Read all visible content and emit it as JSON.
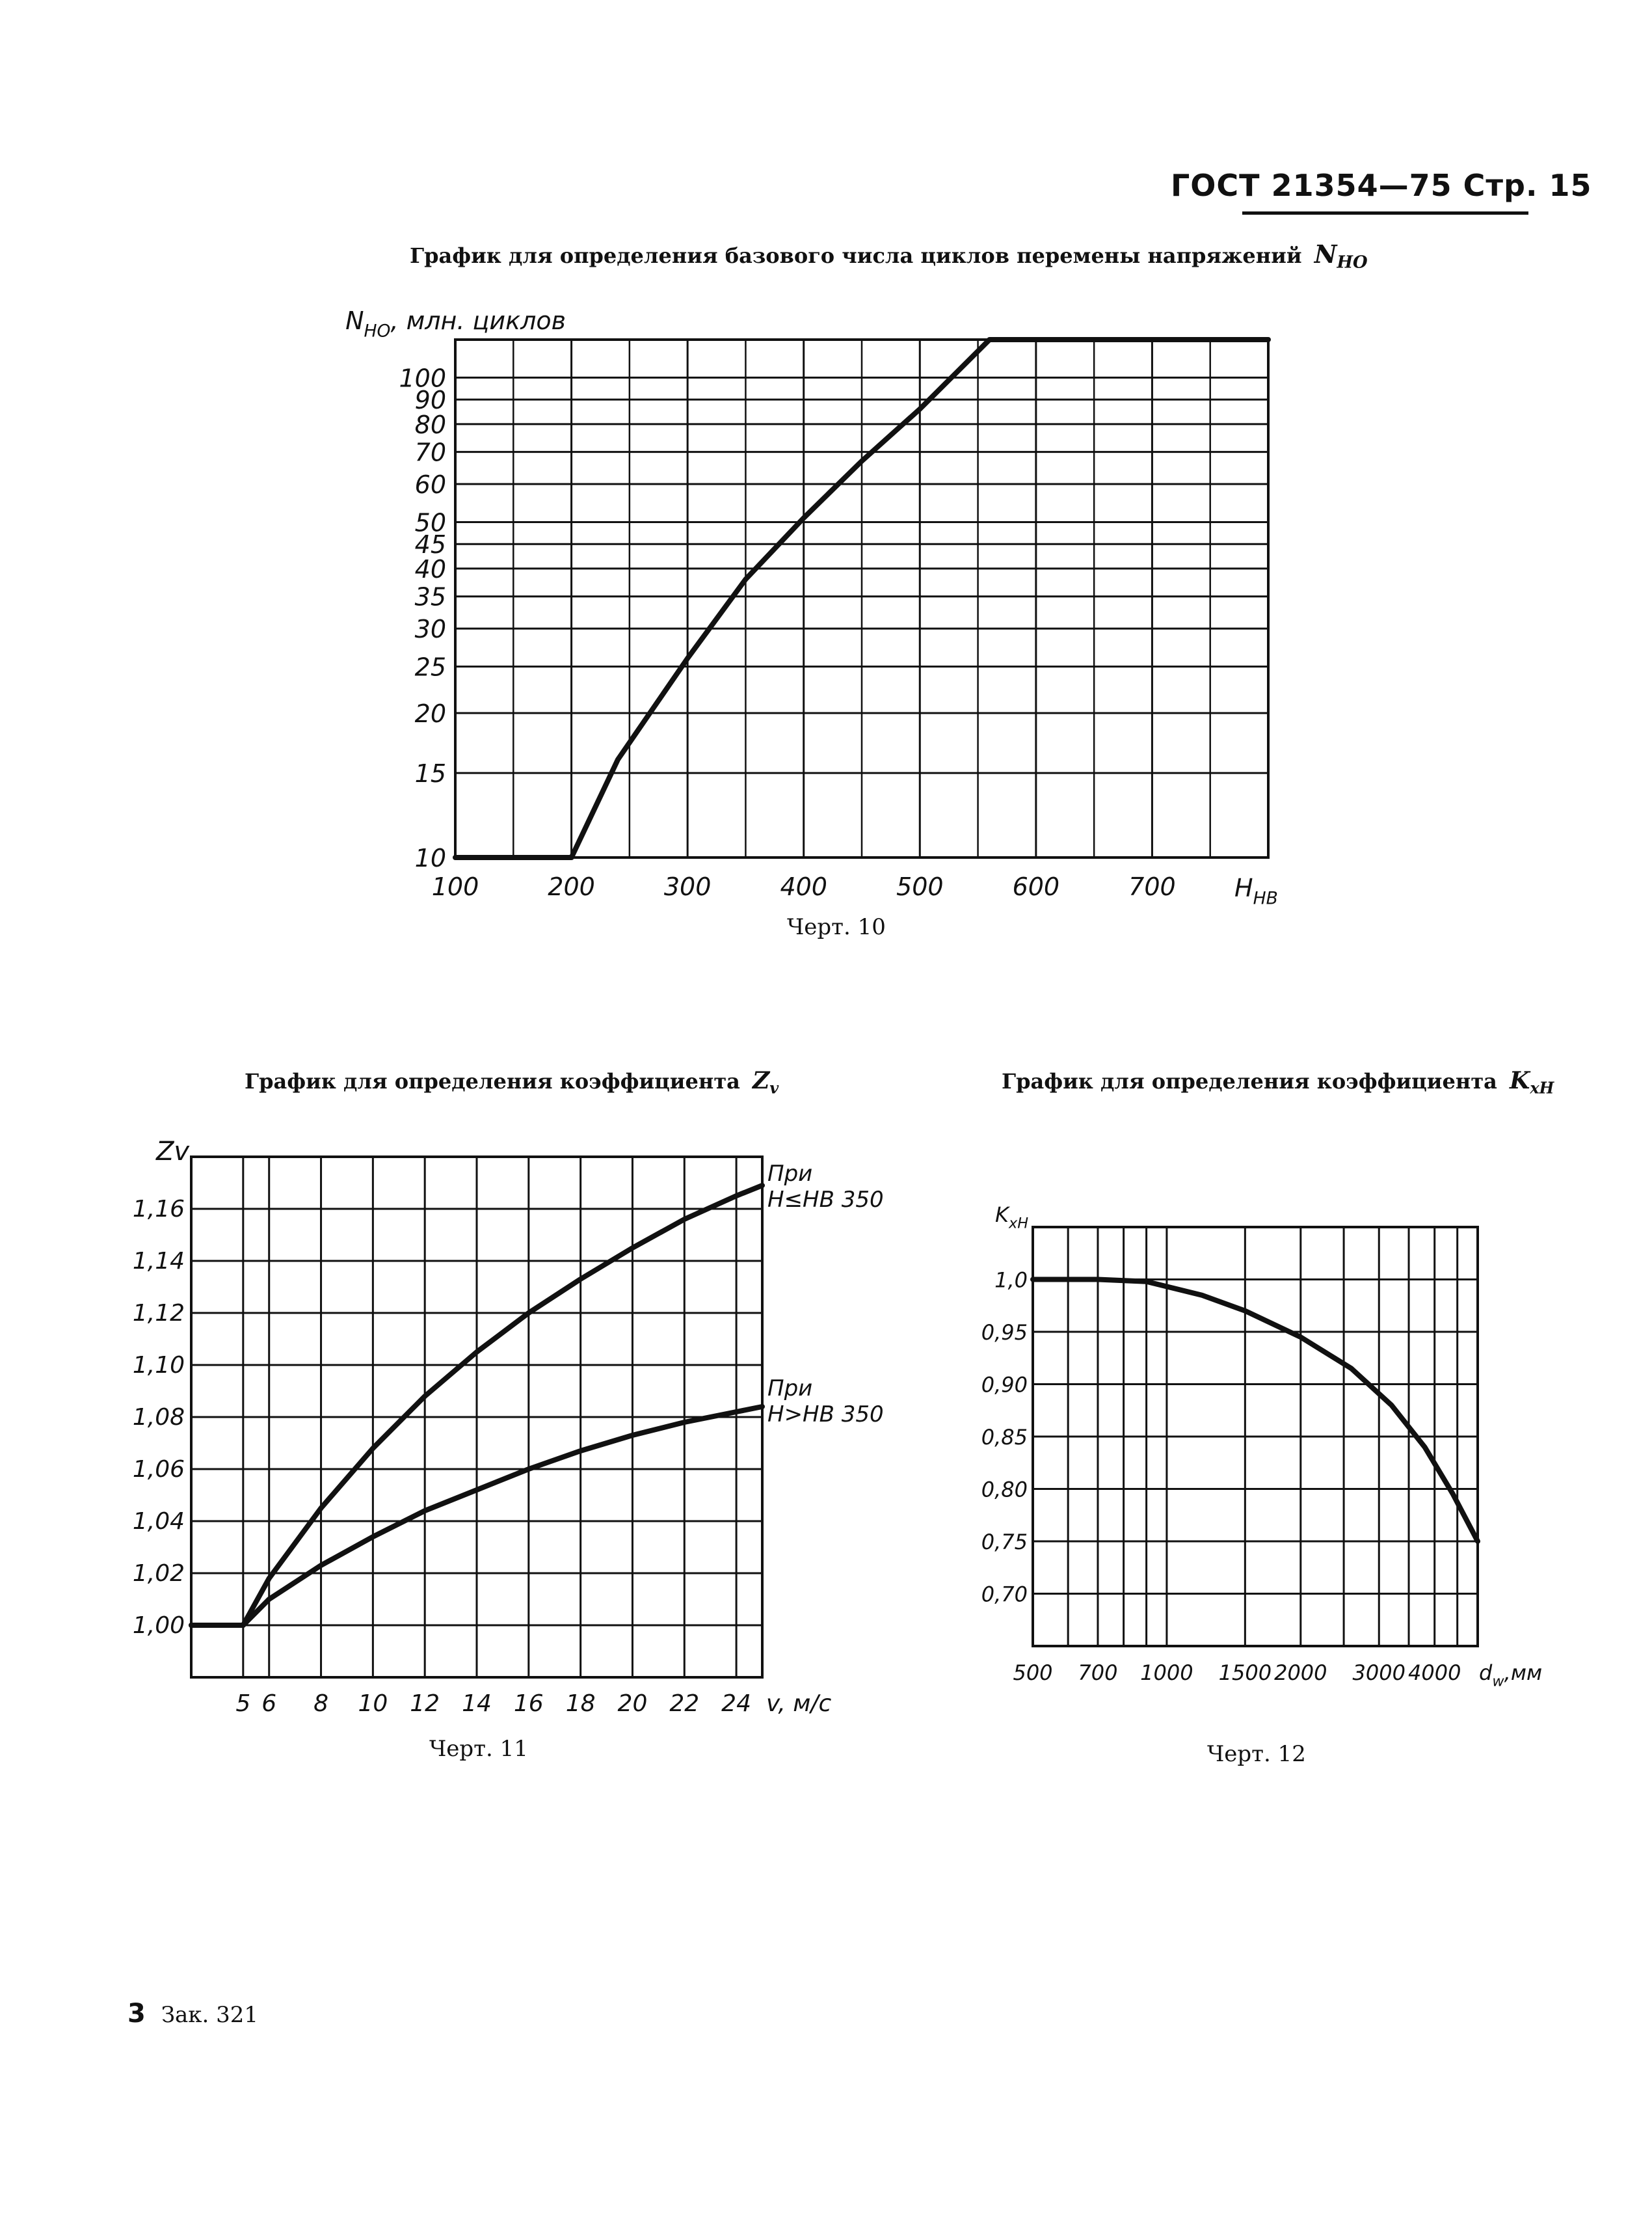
{
  "header": {
    "text": "ГОСТ 21354—75 Стр. 15"
  },
  "footer": {
    "page": "3",
    "order": "Зак. 321"
  },
  "chart_data": [
    {
      "type": "line",
      "title_text": "График для определения базового числа циклов перемены напряжений",
      "title_symbol": "N",
      "title_sub": "HO",
      "caption": "Черт. 10",
      "ylabel": "N",
      "ylabel_sub": "HO",
      "ylabel_suffix": ", млн. циклов",
      "xlabel": "H",
      "xlabel_sub": "HB",
      "x_ticks": [
        100,
        200,
        300,
        400,
        500,
        600,
        700
      ],
      "x_tick_labels": [
        "100",
        "200",
        "300",
        "400",
        "500",
        "600",
        "700"
      ],
      "y_ticks": [
        10,
        15,
        20,
        25,
        30,
        35,
        40,
        45,
        50,
        60,
        70,
        80,
        90,
        100
      ],
      "y_tick_labels": [
        "10",
        "15",
        "20",
        "25",
        "30",
        "35",
        "40",
        "45",
        "50",
        "60",
        "70",
        "80",
        "90",
        "100"
      ],
      "y_scale": "log",
      "xlim": [
        100,
        800
      ],
      "ylim": [
        10,
        120
      ],
      "series": [
        {
          "name": "N_HO",
          "x": [
            100,
            200,
            240,
            300,
            350,
            400,
            450,
            500,
            560,
            800
          ],
          "y": [
            10,
            10,
            16,
            26,
            38,
            51,
            67,
            86,
            120,
            120
          ]
        }
      ]
    },
    {
      "type": "line",
      "title_text": "График для определения коэффициента",
      "title_symbol": "Z",
      "title_sub": "v",
      "caption": "Черт. 11",
      "ylabel": "Zv",
      "xlabel": "v, м/с",
      "x_ticks": [
        5,
        6,
        8,
        10,
        12,
        14,
        16,
        18,
        20,
        22,
        24
      ],
      "x_tick_labels": [
        "5",
        "6",
        "8",
        "10",
        "12",
        "14",
        "16",
        "18",
        "20",
        "22",
        "24"
      ],
      "y_ticks": [
        1.0,
        1.02,
        1.04,
        1.06,
        1.08,
        1.1,
        1.12,
        1.14,
        1.16
      ],
      "y_tick_labels": [
        "1,00",
        "1,02",
        "1,04",
        "1,06",
        "1,08",
        "1,10",
        "1,12",
        "1,14",
        "1,16"
      ],
      "xlim": [
        3,
        25
      ],
      "ylim": [
        0.98,
        1.18
      ],
      "series": [
        {
          "name": "При H≤HB 350",
          "label_line1": "При",
          "label_line2": "H≤HB 350",
          "x": [
            3,
            5,
            6,
            8,
            10,
            12,
            14,
            16,
            18,
            20,
            22,
            24,
            25
          ],
          "y": [
            1.0,
            1.0,
            1.018,
            1.045,
            1.068,
            1.088,
            1.105,
            1.12,
            1.133,
            1.145,
            1.156,
            1.165,
            1.169
          ]
        },
        {
          "name": "При H>HB 350",
          "label_line1": "При",
          "label_line2": "H>HB 350",
          "x": [
            3,
            5,
            6,
            8,
            10,
            12,
            14,
            16,
            18,
            20,
            22,
            24,
            25
          ],
          "y": [
            1.0,
            1.0,
            1.01,
            1.023,
            1.034,
            1.044,
            1.052,
            1.06,
            1.067,
            1.073,
            1.078,
            1.082,
            1.084
          ]
        }
      ]
    },
    {
      "type": "line",
      "title_text": "График для определения коэффициента",
      "title_symbol": "K",
      "title_sub": "xH",
      "caption": "Черт. 12",
      "ylabel": "K",
      "ylabel_sub": "xH",
      "xlabel": "d",
      "xlabel_sub": "w",
      "xlabel_suffix": ",мм",
      "x_scale": "log",
      "x_ticks": [
        500,
        700,
        1000,
        1500,
        2000,
        3000,
        4000
      ],
      "x_tick_labels": [
        "500",
        "700",
        "1000",
        "1500",
        "2000",
        "3000",
        "4000"
      ],
      "y_ticks": [
        0.7,
        0.75,
        0.8,
        0.85,
        0.9,
        0.95,
        1.0
      ],
      "y_tick_labels": [
        "0,70",
        "0,75",
        "0,80",
        "0,85",
        "0,90",
        "0,95",
        "1,0"
      ],
      "xlim": [
        500,
        5000
      ],
      "ylim": [
        0.65,
        1.05
      ],
      "series": [
        {
          "name": "K_xH",
          "x": [
            500,
            700,
            900,
            1200,
            1500,
            2000,
            2600,
            3200,
            3800,
            4400,
            5000
          ],
          "y": [
            1.0,
            1.0,
            0.998,
            0.985,
            0.97,
            0.945,
            0.915,
            0.88,
            0.84,
            0.795,
            0.75
          ]
        }
      ]
    }
  ]
}
